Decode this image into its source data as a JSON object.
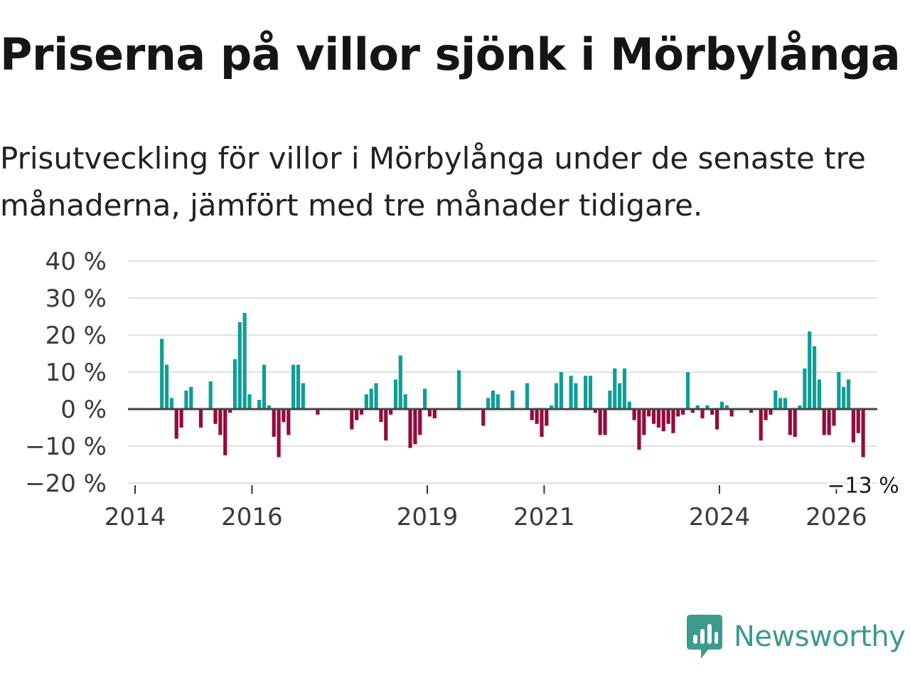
{
  "title": "Priserna på villor sjönk i Mörbylånga",
  "subtitle": "Prisutveckling för villor i Mörbylånga under de senaste tre månaderna, jämfört med tre månader tidigare.",
  "brand": {
    "name": "Newsworthy",
    "color": "#3c9a8f"
  },
  "chart_data": {
    "type": "bar",
    "title": "Priserna på villor sjönk i Mörbylånga",
    "xlabel": "",
    "ylabel": "",
    "unit": " %",
    "ylim": [
      -20,
      40
    ],
    "yticks": [
      40,
      30,
      20,
      10,
      0,
      -10,
      -20
    ],
    "ytick_labels": [
      "40 %",
      "30 %",
      "20 %",
      "10 %",
      "0 %",
      "−10 %",
      "−20 %"
    ],
    "xlim": [
      2014.0,
      2026.1
    ],
    "xticks": [
      2014,
      2016,
      2019,
      2021,
      2024,
      2026
    ],
    "xtick_labels": [
      "2014",
      "2016",
      "2019",
      "2021",
      "2024",
      "2026"
    ],
    "grid": true,
    "colors": {
      "positive": "#0f9e95",
      "negative": "#950a3c",
      "grid": "#e0e0e0",
      "zero_line": "#444444"
    },
    "start": {
      "year": 2014,
      "month": 6
    },
    "values": [
      19,
      12,
      3,
      -8,
      -5,
      5,
      6,
      0,
      -5,
      0,
      7.5,
      -4,
      -7,
      -12.5,
      -1,
      13.5,
      23.5,
      26,
      4,
      0,
      2.5,
      12,
      1,
      -7.5,
      -13,
      -3.5,
      -7,
      12,
      12,
      7,
      0,
      0,
      -1.5,
      0,
      0,
      0,
      0,
      0,
      0,
      -5.5,
      -3,
      -1.5,
      4,
      5.5,
      7,
      -3.5,
      -8.5,
      -1.5,
      8,
      14.5,
      4,
      -10.5,
      -9.5,
      -7,
      5.5,
      -2,
      -2.5,
      0,
      0,
      0,
      0,
      10.5,
      0,
      0,
      0,
      0,
      -4.5,
      3,
      5,
      4,
      0,
      0,
      5,
      0,
      0,
      7,
      -3,
      -4,
      -7.5,
      -4.5,
      1,
      7,
      10,
      0,
      9,
      7,
      0,
      9,
      9,
      -1,
      -7,
      -7,
      5,
      11,
      7,
      11,
      2,
      -3,
      -11,
      -7,
      -2,
      -4,
      -5,
      -6,
      -4,
      -6.5,
      -2,
      -1.5,
      10,
      -1,
      1,
      -2.5,
      1,
      -1.5,
      -5.5,
      2,
      1,
      -2,
      0,
      0,
      0,
      -1,
      0,
      -8.5,
      -3,
      -1.5,
      5,
      3,
      3,
      -7,
      -7.5,
      1,
      11,
      21,
      17,
      8,
      -7,
      -7,
      -4.5,
      10,
      6,
      8,
      -9,
      -6.5,
      -13
    ],
    "annotations": [
      {
        "label": "−13 %",
        "target": "last"
      }
    ]
  }
}
